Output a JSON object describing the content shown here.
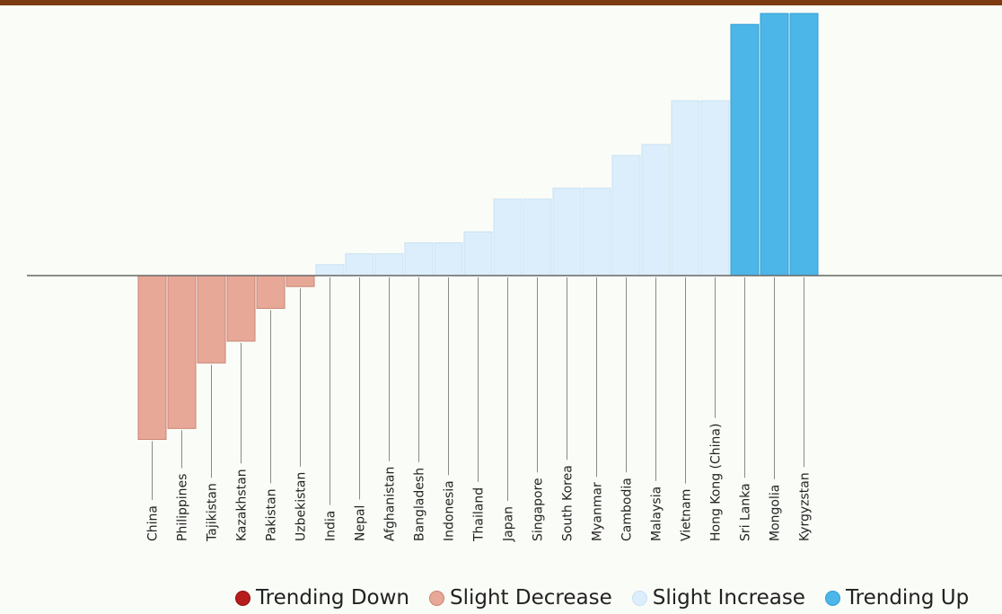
{
  "chart_data": {
    "type": "bar",
    "title": "",
    "xlabel": "",
    "ylabel": "",
    "categories": [
      "China",
      "Philippines",
      "Tajikistan",
      "Kazakhstan",
      "Pakistan",
      "Uzbekistan",
      "India",
      "Nepal",
      "Afghanistan",
      "Bangladesh",
      "Indonesia",
      "Thailand",
      "Japan",
      "Singapore",
      "South Korea",
      "Myanmar",
      "Cambodia",
      "Malaysia",
      "Vietnam",
      "Hong Kong (China)",
      "Sri Lanka",
      "Mongolia",
      "Kyrgyzstan"
    ],
    "values": [
      -15,
      -14,
      -8,
      -6,
      -3,
      -1,
      1,
      2,
      2,
      3,
      3,
      4,
      7,
      7,
      8,
      8,
      11,
      12,
      16,
      16,
      23,
      24,
      24
    ],
    "groups": [
      "slight_decrease",
      "slight_decrease",
      "slight_decrease",
      "slight_decrease",
      "slight_decrease",
      "slight_decrease",
      "slight_increase",
      "slight_increase",
      "slight_increase",
      "slight_increase",
      "slight_increase",
      "slight_increase",
      "slight_increase",
      "slight_increase",
      "slight_increase",
      "slight_increase",
      "slight_increase",
      "slight_increase",
      "slight_increase",
      "slight_increase",
      "trending_up",
      "trending_up",
      "trending_up"
    ],
    "ylim": [
      -31,
      24
    ],
    "grid": false,
    "legend_position": "bottom",
    "legend": [
      {
        "key": "trending_down",
        "label": "Trending Down",
        "color": "#b71c1c"
      },
      {
        "key": "slight_decrease",
        "label": "Slight Decrease",
        "color": "#e8a898"
      },
      {
        "key": "slight_increase",
        "label": "Slight Increase",
        "color": "#dceefb"
      },
      {
        "key": "trending_up",
        "label": "Trending Up",
        "color": "#4db6e8"
      }
    ]
  }
}
